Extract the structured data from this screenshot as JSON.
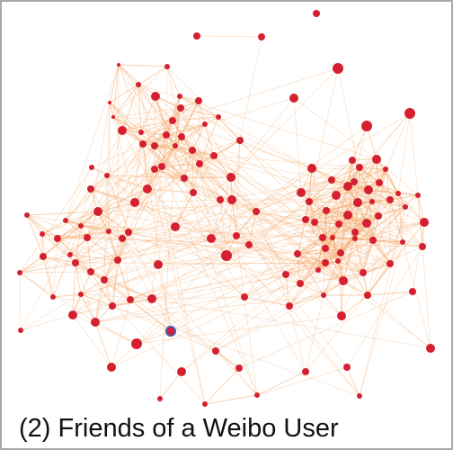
{
  "caption": "(2) Friends of a Weibo User",
  "colors": {
    "node_fill": "#d42030",
    "highlight_node_fill": "#d42030",
    "highlight_node_stroke": "#4a5ab0",
    "edge": "#f4a86a",
    "frame_border": "#a9a9a9"
  },
  "network": {
    "highlighted_node_present": true
  }
}
